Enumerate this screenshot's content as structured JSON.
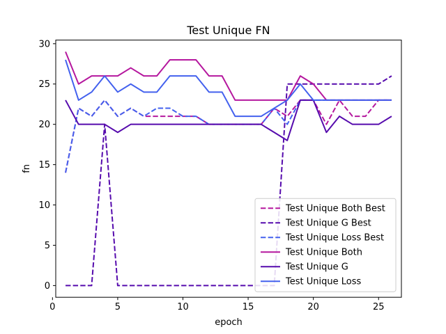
{
  "chart_data": {
    "type": "line",
    "title": "Test Unique FN",
    "xlabel": "epoch",
    "ylabel": "fn",
    "xlim": [
      0.25,
      26.75
    ],
    "ylim": [
      -1.45,
      30.45
    ],
    "xticks": [
      0,
      5,
      10,
      15,
      20,
      25
    ],
    "yticks": [
      0,
      5,
      10,
      15,
      20,
      25,
      30
    ],
    "grid": false,
    "legend_position": "lower-right",
    "x": [
      1,
      2,
      3,
      4,
      5,
      6,
      7,
      8,
      9,
      10,
      11,
      12,
      13,
      14,
      15,
      16,
      17,
      18,
      19,
      20,
      21,
      22,
      23,
      24,
      25,
      26
    ],
    "series": [
      {
        "name": "Test Unique Both Best",
        "color": "#b5179e",
        "dashed": true,
        "values": [
          14,
          22,
          21,
          23,
          21,
          22,
          21,
          21,
          21,
          21,
          21,
          20,
          20,
          20,
          20,
          20,
          22,
          21,
          23,
          23,
          20,
          23,
          21,
          21,
          23,
          23
        ]
      },
      {
        "name": "Test Unique G Best",
        "color": "#560bad",
        "dashed": true,
        "values": [
          0,
          0,
          0,
          20,
          0,
          0,
          0,
          0,
          0,
          0,
          0,
          0,
          0,
          0,
          0,
          0,
          0,
          25,
          25,
          25,
          25,
          25,
          25,
          25,
          25,
          26
        ]
      },
      {
        "name": "Test Unique Loss Best",
        "color": "#4361ee",
        "dashed": true,
        "values": [
          14,
          22,
          21,
          23,
          21,
          22,
          21,
          22,
          22,
          21,
          21,
          20,
          20,
          20,
          20,
          20,
          22,
          20,
          23,
          23,
          23,
          23,
          23,
          23,
          23,
          23
        ]
      },
      {
        "name": "Test Unique Both",
        "color": "#b5179e",
        "dashed": false,
        "values": [
          29,
          25,
          26,
          26,
          26,
          27,
          26,
          26,
          28,
          28,
          28,
          26,
          26,
          23,
          23,
          23,
          23,
          23,
          26,
          25,
          23,
          23,
          23,
          23,
          23,
          23
        ]
      },
      {
        "name": "Test Unique G",
        "color": "#560bad",
        "dashed": false,
        "values": [
          23,
          20,
          20,
          20,
          19,
          20,
          20,
          20,
          20,
          20,
          20,
          20,
          20,
          20,
          20,
          20,
          19,
          18,
          23,
          23,
          19,
          21,
          20,
          20,
          20,
          21
        ]
      },
      {
        "name": "Test Unique Loss",
        "color": "#4361ee",
        "dashed": false,
        "values": [
          28,
          23,
          24,
          26,
          24,
          25,
          24,
          24,
          26,
          26,
          26,
          24,
          24,
          21,
          21,
          21,
          22,
          23,
          25,
          23,
          23,
          23,
          23,
          23,
          23,
          23
        ]
      }
    ]
  }
}
